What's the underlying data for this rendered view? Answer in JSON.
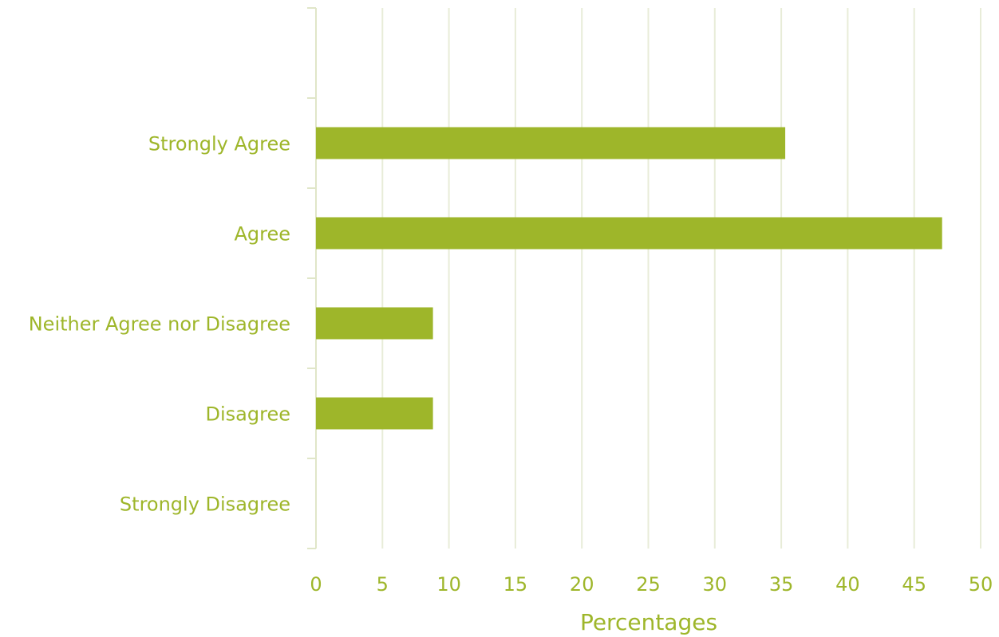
{
  "chart_data": {
    "type": "bar",
    "orientation": "horizontal",
    "categories": [
      "Strongly Agree",
      "Agree",
      "Neither Agree nor Disagree",
      "Disagree",
      "Strongly Disagree",
      ""
    ],
    "values": [
      35.3,
      47.1,
      8.8,
      8.8,
      0,
      null
    ],
    "xlabel": "Percentages",
    "ylabel": "",
    "xlim": [
      0,
      50
    ],
    "xticks": [
      0,
      5,
      10,
      15,
      20,
      25,
      30,
      35,
      40,
      45,
      50
    ],
    "grid": "vertical",
    "legend": "none",
    "colors": {
      "bar": "#9EB62A",
      "text": "#9EB62A",
      "grid": "#E8ECD8",
      "axis": "#E0E6C8"
    }
  }
}
